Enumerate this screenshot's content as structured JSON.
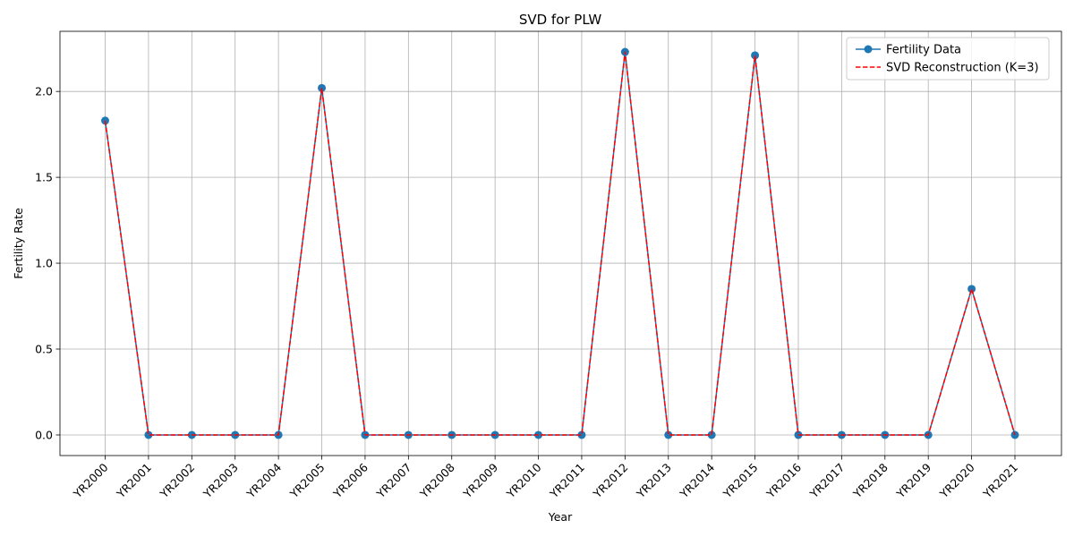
{
  "chart_data": {
    "type": "line",
    "title": "SVD for PLW",
    "xlabel": "Year",
    "ylabel": "Fertility Rate",
    "categories": [
      "YR2000",
      "YR2001",
      "YR2002",
      "YR2003",
      "YR2004",
      "YR2005",
      "YR2006",
      "YR2007",
      "YR2008",
      "YR2009",
      "YR2010",
      "YR2011",
      "YR2012",
      "YR2013",
      "YR2014",
      "YR2015",
      "YR2016",
      "YR2017",
      "YR2018",
      "YR2019",
      "YR2020",
      "YR2021"
    ],
    "ylim": [
      -0.12,
      2.35
    ],
    "yticks": [
      0.0,
      0.5,
      1.0,
      1.5,
      2.0
    ],
    "ytick_labels": [
      "0.0",
      "0.5",
      "1.0",
      "1.5",
      "2.0"
    ],
    "grid": true,
    "legend_position": "top-right",
    "series": [
      {
        "name": "Fertility Data",
        "style": "solid-with-markers",
        "color": "#1f77b4",
        "values": [
          1.83,
          0.0,
          0.0,
          0.0,
          0.0,
          2.02,
          0.0,
          0.0,
          0.0,
          0.0,
          0.0,
          0.0,
          2.23,
          0.0,
          0.0,
          2.21,
          0.0,
          0.0,
          0.0,
          0.0,
          0.85,
          0.0
        ]
      },
      {
        "name": "SVD Reconstruction (K=3)",
        "style": "dashed",
        "color": "#ff0000",
        "values": [
          1.83,
          0.0,
          0.0,
          0.0,
          0.0,
          2.02,
          0.0,
          0.0,
          0.0,
          0.0,
          0.0,
          0.0,
          2.23,
          0.0,
          0.0,
          2.21,
          0.0,
          0.0,
          0.0,
          0.0,
          0.85,
          0.0
        ]
      }
    ]
  }
}
